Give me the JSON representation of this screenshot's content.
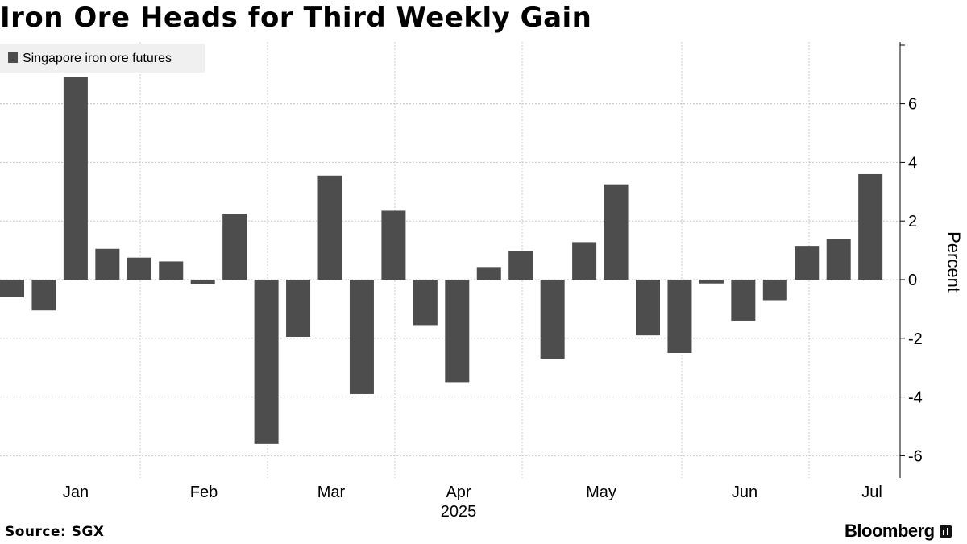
{
  "title": "Iron Ore Heads for Third Weekly Gain",
  "source": "Source: SGX",
  "brand": "Bloomberg",
  "brand_icon": "bloomberg-logo-icon",
  "colors": {
    "bar": "#4d4d4d",
    "grid": "#c8c8c8",
    "legend_bg": "#f0f0f0"
  },
  "chart_data": {
    "type": "bar",
    "series": [
      {
        "name": "Singapore iron ore futures",
        "values": [
          -0.6,
          -1.05,
          6.9,
          1.05,
          0.75,
          0.62,
          -0.15,
          2.25,
          -5.6,
          -1.95,
          3.55,
          -3.9,
          2.35,
          -1.55,
          -3.5,
          0.43,
          0.97,
          -2.7,
          1.28,
          3.25,
          -1.9,
          -2.5,
          -0.13,
          -1.4,
          -0.7,
          1.15,
          1.4,
          3.6
        ]
      }
    ],
    "x_ticks": [
      "Jan",
      "Feb",
      "Mar",
      "Apr",
      "May",
      "Jun",
      "Jul"
    ],
    "x_year": "2025",
    "y_ticks": [
      "6",
      "4",
      "2",
      "0",
      "-2",
      "-4",
      "-6"
    ],
    "ylabel": "Percent",
    "ylim": [
      -6.7,
      7.9
    ],
    "grid": true,
    "legend_position": "top-left",
    "y_axis_side": "right"
  }
}
